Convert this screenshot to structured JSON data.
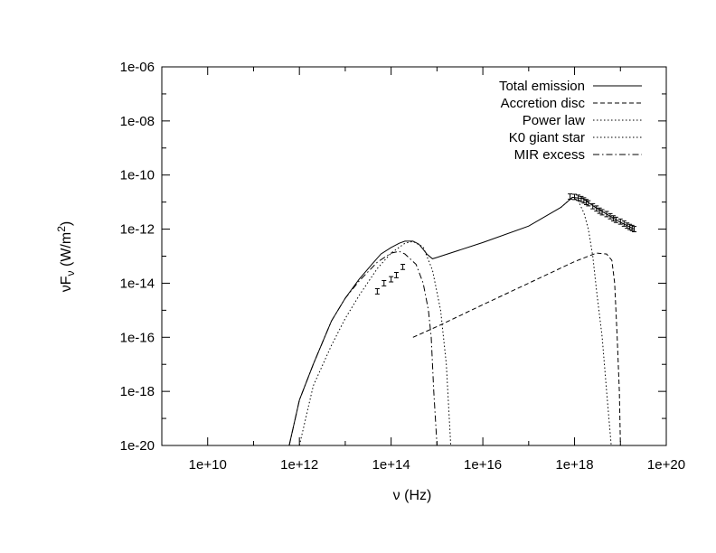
{
  "chart_data": {
    "type": "line",
    "title": "",
    "xlabel": "ν (Hz)",
    "ylabel_prefix": "νF",
    "ylabel_sub": "ν",
    "ylabel_unit_open": " (W/m",
    "ylabel_unit_sup": "2",
    "ylabel_unit_close": ")",
    "x_scale": "log",
    "y_scale": "log",
    "xlim": [
      1000000000.0,
      1e+20
    ],
    "ylim": [
      1e-20,
      1e-06
    ],
    "x_ticks": [
      10000000000.0,
      1000000000000.0,
      100000000000000.0,
      1e+16,
      1e+18,
      1e+20
    ],
    "x_tick_labels": [
      "1e+10",
      "1e+12",
      "1e+14",
      "1e+16",
      "1e+18",
      "1e+20"
    ],
    "y_ticks": [
      1e-20,
      1e-18,
      1e-16,
      1e-14,
      1e-12,
      1e-10,
      1e-08,
      1e-06
    ],
    "y_tick_labels": [
      "1e-20",
      "1e-18",
      "1e-16",
      "1e-14",
      "1e-12",
      "1e-10",
      "1e-08",
      "1e-06"
    ],
    "grid": false,
    "legend_position": "top-right",
    "series": [
      {
        "name": "Total emission",
        "style": "solid",
        "points": [
          [
            600000000000.0,
            1e-20
          ],
          [
            1000000000000.0,
            4.8e-19
          ],
          [
            2000000000000.0,
            1e-17
          ],
          [
            5000000000000.0,
            4e-16
          ],
          [
            10000000000000.0,
            2.8e-15
          ],
          [
            20000000000000.0,
            1.4e-14
          ],
          [
            40000000000000.0,
            5.5e-14
          ],
          [
            60000000000000.0,
            1.2e-13
          ],
          [
            100000000000000.0,
            2.1e-13
          ],
          [
            150000000000000.0,
            3e-13
          ],
          [
            200000000000000.0,
            3.6e-13
          ],
          [
            300000000000000.0,
            3.6e-13
          ],
          [
            400000000000000.0,
            2.8e-13
          ],
          [
            500000000000000.0,
            1.8e-13
          ],
          [
            600000000000000.0,
            1.2e-13
          ],
          [
            800000000000000.0,
            8e-14
          ],
          [
            1000000000000000.0,
            9e-14
          ],
          [
            1e+16,
            3.2e-13
          ],
          [
            1e+17,
            1.3e-12
          ],
          [
            5e+17,
            6.3e-12
          ],
          [
            9e+17,
            1.5e-11
          ],
          [
            1.5e+18,
            1.35e-11
          ],
          [
            3e+18,
            6e-12
          ],
          [
            6e+18,
            3e-12
          ],
          [
            1e+19,
            1.8e-12
          ],
          [
            2e+19,
            1e-12
          ]
        ]
      },
      {
        "name": "Accretion disc",
        "style": "dashed",
        "points": [
          [
            300000000000000.0,
            1e-16
          ],
          [
            1000000000000000.0,
            2.5e-16
          ],
          [
            1e+16,
            1.6e-15
          ],
          [
            1e+17,
            1e-14
          ],
          [
            1e+18,
            6.3e-14
          ],
          [
            3e+18,
            1.3e-13
          ],
          [
            5e+18,
            1.2e-13
          ],
          [
            6.5e+18,
            7e-14
          ],
          [
            7.5e+18,
            1e-14
          ],
          [
            8.5e+18,
            1e-16
          ],
          [
            9.5e+18,
            1e-18
          ],
          [
            1e+19,
            1e-20
          ]
        ]
      },
      {
        "name": "Power law",
        "style": "dotted",
        "points": [
          [
            5e+17,
            6.3e-12
          ],
          [
            9e+17,
            1.5e-11
          ],
          [
            1.2e+18,
            1.1e-11
          ],
          [
            1.6e+18,
            4e-12
          ],
          [
            2e+18,
            1e-12
          ],
          [
            2.5e+18,
            1e-13
          ],
          [
            3e+18,
            6e-15
          ],
          [
            4e+18,
            1e-16
          ],
          [
            5e+18,
            1e-18
          ],
          [
            6.3e+18,
            1e-20
          ]
        ]
      },
      {
        "name": "K0 giant star",
        "style": "dotted",
        "points": [
          [
            1000000000000.0,
            1e-20
          ],
          [
            2000000000000.0,
            1.6e-18
          ],
          [
            5000000000000.0,
            5e-17
          ],
          [
            10000000000000.0,
            5e-16
          ],
          [
            20000000000000.0,
            3.5e-15
          ],
          [
            50000000000000.0,
            3.5e-14
          ],
          [
            100000000000000.0,
            1.3e-13
          ],
          [
            200000000000000.0,
            3e-13
          ],
          [
            300000000000000.0,
            3.5e-13
          ],
          [
            500000000000000.0,
            2.2e-13
          ],
          [
            800000000000000.0,
            3e-14
          ],
          [
            1200000000000000.0,
            1e-15
          ],
          [
            1600000000000000.0,
            1e-17
          ],
          [
            2000000000000000.0,
            1e-20
          ]
        ]
      },
      {
        "name": "MIR excess",
        "style": "dashdot",
        "points": [
          [
            600000000000.0,
            1e-20
          ],
          [
            1000000000000.0,
            4.8e-19
          ],
          [
            2000000000000.0,
            1e-17
          ],
          [
            5000000000000.0,
            4e-16
          ],
          [
            10000000000000.0,
            2.8e-15
          ],
          [
            20000000000000.0,
            1.2e-14
          ],
          [
            50000000000000.0,
            6e-14
          ],
          [
            100000000000000.0,
            1.3e-13
          ],
          [
            150000000000000.0,
            1.5e-13
          ],
          [
            200000000000000.0,
            1.2e-13
          ],
          [
            350000000000000.0,
            5e-14
          ],
          [
            500000000000000.0,
            1e-14
          ],
          [
            650000000000000.0,
            1e-15
          ],
          [
            750000000000000.0,
            1e-16
          ],
          [
            850000000000000.0,
            1e-18
          ],
          [
            1000000000000000.0,
            1e-20
          ]
        ]
      }
    ],
    "data_points_ir": [
      [
        50000000000000.0,
        5e-15
      ],
      [
        70000000000000.0,
        1e-14
      ],
      [
        100000000000000.0,
        1.4e-14
      ],
      [
        130000000000000.0,
        2e-14
      ],
      [
        180000000000000.0,
        4e-14
      ]
    ],
    "data_points_xray": [
      [
        8e+17,
        1.6e-11
      ],
      [
        1e+18,
        1.55e-11
      ],
      [
        1.2e+18,
        1.45e-11
      ],
      [
        1.4e+18,
        1.3e-11
      ],
      [
        1.6e+18,
        1.15e-11
      ],
      [
        1.8e+18,
        1e-11
      ],
      [
        2e+18,
        9e-12
      ],
      [
        2.5e+18,
        7e-12
      ],
      [
        3e+18,
        5.8e-12
      ],
      [
        3.5e+18,
        4.8e-12
      ],
      [
        4e+18,
        4.2e-12
      ],
      [
        5e+18,
        3.6e-12
      ],
      [
        6e+18,
        3e-12
      ],
      [
        7e+18,
        2.5e-12
      ],
      [
        8e+18,
        2.2e-12
      ],
      [
        1e+19,
        1.9e-12
      ],
      [
        1.2e+19,
        1.6e-12
      ],
      [
        1.4e+19,
        1.35e-12
      ],
      [
        1.6e+19,
        1.2e-12
      ],
      [
        1.8e+19,
        1.1e-12
      ],
      [
        2e+19,
        1e-12
      ]
    ]
  }
}
